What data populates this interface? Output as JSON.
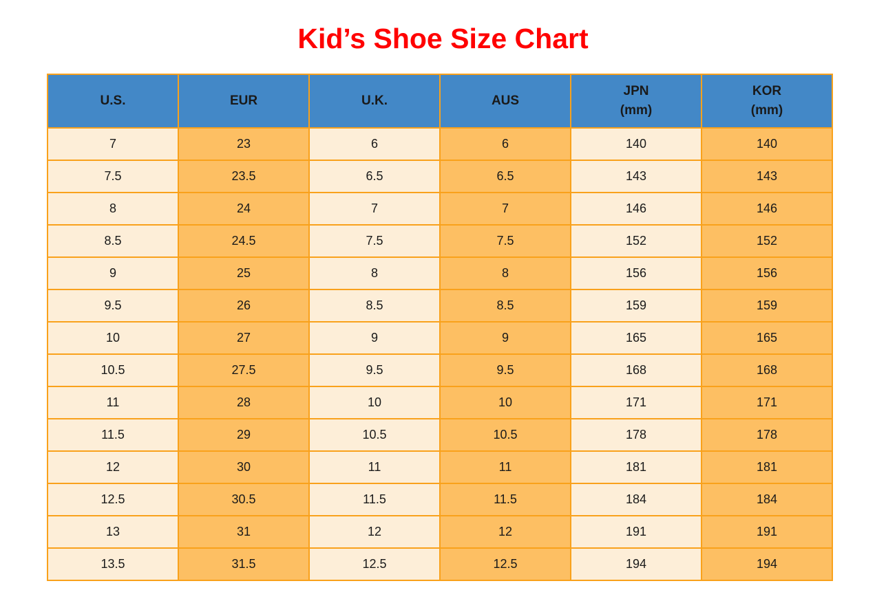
{
  "page": {
    "title": "Kid’s Shoe Size Chart"
  },
  "colors": {
    "title_red": "#ff0000",
    "header_blue": "#4388c7",
    "col_cream": "#fdeed8",
    "col_orange": "#fdbf63",
    "border_orange": "#f9a11b",
    "text": "#1a1a1a"
  },
  "table": {
    "headers": [
      {
        "line1": "U.S.",
        "line2": ""
      },
      {
        "line1": "EUR",
        "line2": ""
      },
      {
        "line1": "U.K.",
        "line2": ""
      },
      {
        "line1": "AUS",
        "line2": ""
      },
      {
        "line1": "JPN",
        "line2": "(mm)"
      },
      {
        "line1": "KOR",
        "line2": "(mm)"
      }
    ],
    "rows": [
      {
        "cells": [
          "7",
          "23",
          "6",
          "6",
          "140",
          "140"
        ]
      },
      {
        "cells": [
          "7.5",
          "23.5",
          "6.5",
          "6.5",
          "143",
          "143"
        ]
      },
      {
        "cells": [
          "8",
          "24",
          "7",
          "7",
          "146",
          "146"
        ]
      },
      {
        "cells": [
          "8.5",
          "24.5",
          "7.5",
          "7.5",
          "152",
          "152"
        ]
      },
      {
        "cells": [
          "9",
          "25",
          "8",
          "8",
          "156",
          "156"
        ]
      },
      {
        "cells": [
          "9.5",
          "26",
          "8.5",
          "8.5",
          "159",
          "159"
        ]
      },
      {
        "cells": [
          "10",
          "27",
          "9",
          "9",
          "165",
          "165"
        ]
      },
      {
        "cells": [
          "10.5",
          "27.5",
          "9.5",
          "9.5",
          "168",
          "168"
        ]
      },
      {
        "cells": [
          "11",
          "28",
          "10",
          "10",
          "171",
          "171"
        ]
      },
      {
        "cells": [
          "11.5",
          "29",
          "10.5",
          "10.5",
          "178",
          "178"
        ]
      },
      {
        "cells": [
          "12",
          "30",
          "11",
          "11",
          "181",
          "181"
        ]
      },
      {
        "cells": [
          "12.5",
          "30.5",
          "11.5",
          "11.5",
          "184",
          "184"
        ]
      },
      {
        "cells": [
          "13",
          "31",
          "12",
          "12",
          "191",
          "191"
        ]
      },
      {
        "cells": [
          "13.5",
          "31.5",
          "12.5",
          "12.5",
          "194",
          "194"
        ]
      }
    ]
  },
  "chart_data": {
    "type": "table",
    "title": "Kid’s Shoe Size Chart",
    "columns": [
      "U.S.",
      "EUR",
      "U.K.",
      "AUS",
      "JPN (mm)",
      "KOR (mm)"
    ],
    "rows": [
      [
        "7",
        "23",
        "6",
        "6",
        "140",
        "140"
      ],
      [
        "7.5",
        "23.5",
        "6.5",
        "6.5",
        "143",
        "143"
      ],
      [
        "8",
        "24",
        "7",
        "7",
        "146",
        "146"
      ],
      [
        "8.5",
        "24.5",
        "7.5",
        "7.5",
        "152",
        "152"
      ],
      [
        "9",
        "25",
        "8",
        "8",
        "156",
        "156"
      ],
      [
        "9.5",
        "26",
        "8.5",
        "8.5",
        "159",
        "159"
      ],
      [
        "10",
        "27",
        "9",
        "9",
        "165",
        "165"
      ],
      [
        "10.5",
        "27.5",
        "9.5",
        "9.5",
        "168",
        "168"
      ],
      [
        "11",
        "28",
        "10",
        "10",
        "171",
        "171"
      ],
      [
        "11.5",
        "29",
        "10.5",
        "10.5",
        "178",
        "178"
      ],
      [
        "12",
        "30",
        "11",
        "11",
        "181",
        "181"
      ],
      [
        "12.5",
        "30.5",
        "11.5",
        "11.5",
        "184",
        "184"
      ],
      [
        "13",
        "31",
        "12",
        "12",
        "191",
        "191"
      ],
      [
        "13.5",
        "31.5",
        "12.5",
        "12.5",
        "194",
        "194"
      ]
    ],
    "layout": {
      "header_background": "#4388c7",
      "column_fill_alternating": [
        "#fdeed8",
        "#fdbf63"
      ],
      "grid": "on",
      "grid_color": "#f9a11b"
    }
  }
}
